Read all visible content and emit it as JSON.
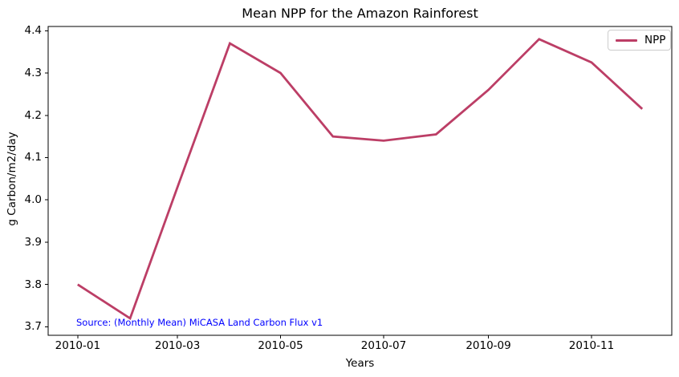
{
  "figure": {
    "title": "Mean NPP for the Amazon Rainforest",
    "xlabel": "Years",
    "ylabel": "g Carbon/m2/day",
    "source_note": "Source: (Monthly Mean) MiCASA Land Carbon Flux v1",
    "legend_label": "NPP"
  },
  "colors": {
    "line": "#bc3e66",
    "source_text": "#0000ff",
    "axis": "#000000",
    "legend_border": "#cccccc",
    "background": "#ffffff"
  },
  "chart_data": {
    "type": "line",
    "title": "Mean NPP for the Amazon Rainforest",
    "xlabel": "Years",
    "ylabel": "g Carbon/m2/day",
    "x": [
      "2010-01",
      "2010-02",
      "2010-03",
      "2010-04",
      "2010-05",
      "2010-06",
      "2010-07",
      "2010-08",
      "2010-09",
      "2010-10",
      "2010-11",
      "2010-12"
    ],
    "series": [
      {
        "name": "NPP",
        "values": [
          3.8,
          3.72,
          4.03,
          4.37,
          4.3,
          4.15,
          4.14,
          4.155,
          4.26,
          4.38,
          4.325,
          4.215
        ]
      }
    ],
    "x_tick_labels": [
      "2010-01",
      "2010-03",
      "2010-05",
      "2010-07",
      "2010-09",
      "2010-11"
    ],
    "y_ticks": [
      3.7,
      3.8,
      3.9,
      4.0,
      4.1,
      4.2,
      4.3,
      4.4
    ],
    "ylim": [
      3.68,
      4.41
    ],
    "grid": false,
    "legend": [
      "NPP"
    ],
    "legend_position": "upper right",
    "annotation": "Source: (Monthly Mean) MiCASA Land Carbon Flux v1"
  }
}
